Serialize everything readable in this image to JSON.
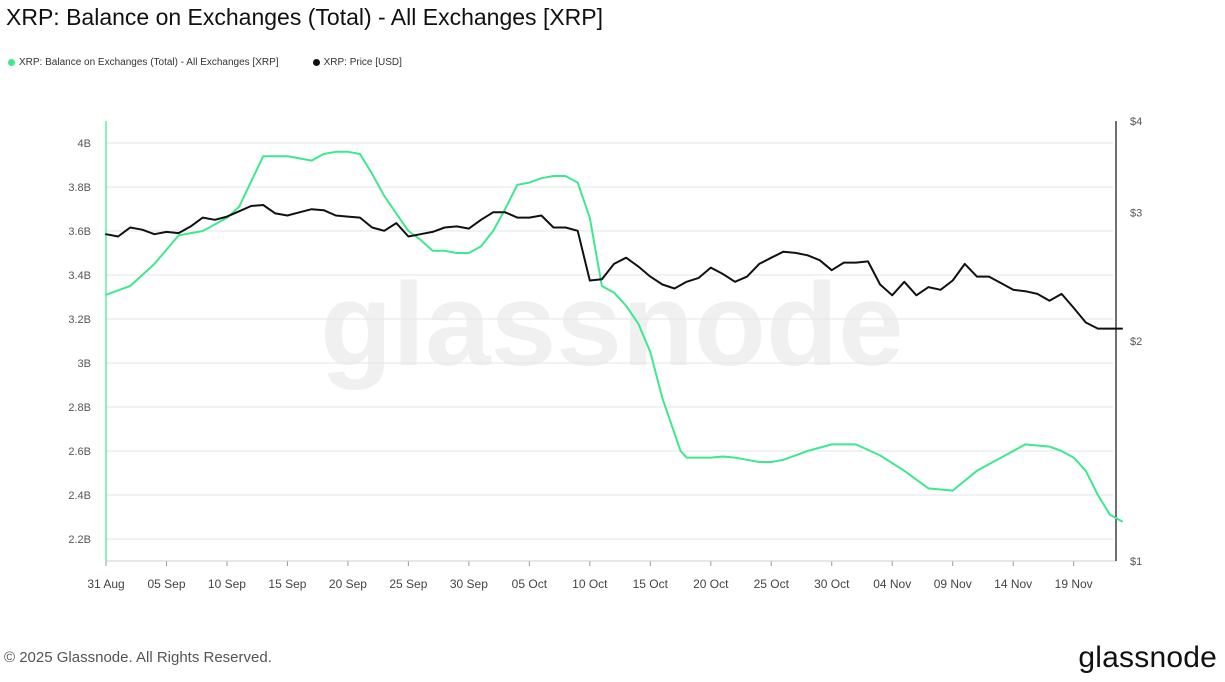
{
  "page": {
    "title": "XRP: Balance on Exchanges (Total) - All Exchanges [XRP]",
    "copyright": "© 2025 Glassnode. All Rights Reserved.",
    "logo": "glassnode",
    "watermark": "glassnode"
  },
  "chart_data": {
    "type": "line",
    "title": "XRP: Balance on Exchanges (Total) - All Exchanges [XRP]",
    "legend_position": "top-left",
    "grid": true,
    "x_tick_labels": [
      "31 Aug",
      "05 Sep",
      "10 Sep",
      "15 Sep",
      "20 Sep",
      "25 Sep",
      "30 Sep",
      "05 Oct",
      "10 Oct",
      "15 Oct",
      "20 Oct",
      "25 Oct",
      "30 Oct",
      "04 Nov",
      "09 Nov",
      "14 Nov",
      "19 Nov"
    ],
    "x_range_days": [
      0,
      83.5
    ],
    "y_left": {
      "range": [
        2.1,
        4.1
      ],
      "tick_values": [
        2.2,
        2.4,
        2.6,
        2.8,
        3.0,
        3.2,
        3.4,
        3.6,
        3.8,
        4.0
      ],
      "tick_labels": [
        "2.2B",
        "2.4B",
        "2.6B",
        "2.8B",
        "3B",
        "3.2B",
        "3.4B",
        "3.6B",
        "3.8B",
        "4B"
      ]
    },
    "y_right": {
      "scale": "log",
      "range": [
        1,
        4
      ],
      "tick_values": [
        1,
        2,
        3,
        4
      ],
      "tick_labels": [
        "$1",
        "$2",
        "$3",
        "$4"
      ]
    },
    "series": [
      {
        "name": "XRP: Balance on Exchanges (Total) - All Exchanges [XRP]",
        "axis": "left",
        "color": "#3ee88e",
        "x": [
          0,
          2,
          4,
          6,
          8,
          10,
          11,
          13,
          15,
          16,
          17,
          18,
          19,
          20,
          21,
          22,
          23,
          24,
          25,
          26,
          27,
          28,
          29,
          30,
          31,
          32,
          33,
          34,
          35,
          36,
          37,
          38,
          39,
          40,
          41,
          42,
          43,
          44,
          45,
          46,
          47,
          47.5,
          48,
          49,
          50,
          51,
          52,
          53,
          54,
          55,
          56,
          57,
          58,
          60,
          62,
          64,
          66,
          68,
          70,
          72,
          74,
          76,
          78,
          79,
          80,
          81,
          82,
          83,
          84
        ],
        "values": [
          3.31,
          3.35,
          3.45,
          3.58,
          3.6,
          3.66,
          3.71,
          3.94,
          3.94,
          3.93,
          3.92,
          3.95,
          3.96,
          3.96,
          3.95,
          3.86,
          3.76,
          3.68,
          3.6,
          3.56,
          3.51,
          3.51,
          3.5,
          3.5,
          3.53,
          3.6,
          3.7,
          3.81,
          3.82,
          3.84,
          3.85,
          3.85,
          3.82,
          3.66,
          3.35,
          3.32,
          3.26,
          3.18,
          3.05,
          2.84,
          2.68,
          2.6,
          2.57,
          2.57,
          2.57,
          2.575,
          2.57,
          2.56,
          2.55,
          2.55,
          2.56,
          2.58,
          2.6,
          2.63,
          2.63,
          2.58,
          2.51,
          2.43,
          2.42,
          2.51,
          2.57,
          2.63,
          2.62,
          2.6,
          2.57,
          2.51,
          2.4,
          2.31,
          2.28
        ]
      },
      {
        "name": "XRP: Price [USD]",
        "axis": "right",
        "color": "#111111",
        "x": [
          0,
          1,
          2,
          3,
          4,
          5,
          6,
          7,
          8,
          9,
          10,
          11,
          12,
          13,
          14,
          15,
          16,
          17,
          18,
          19,
          20,
          21,
          22,
          23,
          24,
          25,
          26,
          27,
          28,
          29,
          30,
          31,
          32,
          33,
          34,
          35,
          36,
          37,
          38,
          39,
          40,
          41,
          42,
          43,
          44,
          45,
          46,
          47,
          48,
          49,
          50,
          51,
          52,
          53,
          54,
          55,
          56,
          57,
          58,
          59,
          60,
          61,
          62,
          63,
          64,
          65,
          66,
          67,
          68,
          69,
          70,
          71,
          72,
          73,
          74,
          75,
          76,
          77,
          78,
          79,
          80,
          81,
          82,
          83,
          84
        ],
        "values": [
          2.8,
          2.78,
          2.86,
          2.84,
          2.8,
          2.82,
          2.81,
          2.87,
          2.95,
          2.93,
          2.96,
          3.01,
          3.06,
          3.07,
          2.99,
          2.97,
          3.0,
          3.03,
          3.02,
          2.97,
          2.96,
          2.95,
          2.86,
          2.83,
          2.9,
          2.78,
          2.8,
          2.82,
          2.86,
          2.87,
          2.85,
          2.93,
          3.0,
          3.0,
          2.95,
          2.95,
          2.97,
          2.86,
          2.86,
          2.83,
          2.42,
          2.43,
          2.55,
          2.6,
          2.53,
          2.45,
          2.39,
          2.36,
          2.41,
          2.44,
          2.52,
          2.47,
          2.41,
          2.45,
          2.55,
          2.6,
          2.65,
          2.64,
          2.62,
          2.58,
          2.5,
          2.56,
          2.56,
          2.57,
          2.39,
          2.31,
          2.41,
          2.31,
          2.37,
          2.35,
          2.42,
          2.55,
          2.45,
          2.45,
          2.4,
          2.35,
          2.34,
          2.32,
          2.27,
          2.32,
          2.22,
          2.12,
          2.08,
          2.08,
          2.08
        ]
      }
    ]
  }
}
